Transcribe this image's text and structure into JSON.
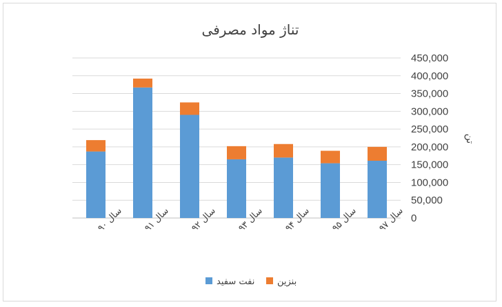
{
  "chart_data": {
    "type": "bar",
    "stacked": true,
    "title": "تناژ مواد مصرفی",
    "ylabel": "تن",
    "categories": [
      "سال ۹۰",
      "سال ۹۱",
      "سال ۹۲",
      "سال ۹۳",
      "سال ۹۴",
      "سال ۹۵",
      "سال ۹۷"
    ],
    "series": [
      {
        "name": "نفت سفید",
        "color": "#5b9bd5",
        "values": [
          187000,
          367000,
          290000,
          165000,
          170000,
          154000,
          161000
        ]
      },
      {
        "name": "بنزین",
        "color": "#ed7d31",
        "values": [
          32000,
          25000,
          35000,
          37000,
          38000,
          35000,
          39000
        ]
      }
    ],
    "ylim": [
      0,
      450000
    ],
    "yticks": [
      "0",
      "50,000",
      "100,000",
      "150,000",
      "200,000",
      "250,000",
      "300,000",
      "350,000",
      "400,000",
      "450,000"
    ],
    "grid": true,
    "legend_position": "bottom",
    "y_axis_side": "right"
  }
}
